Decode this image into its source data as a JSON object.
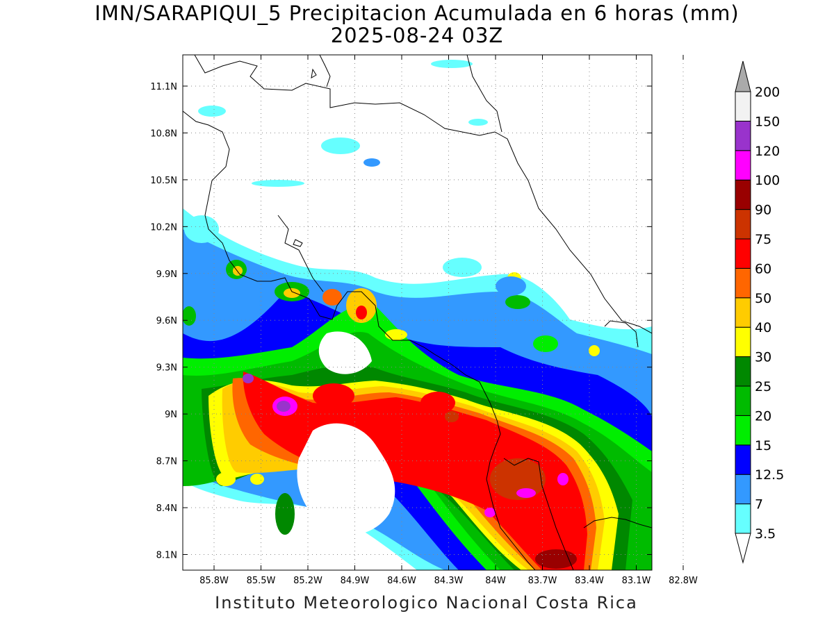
{
  "title": {
    "line1": "IMN/SARAPIQUI_5 Precipitacion Acumulada en 6 horas (mm)",
    "line2": "2025-08-24 03Z"
  },
  "footer": "Instituto Meteorologico Nacional Costa Rica",
  "map": {
    "lon_range": [
      -86.0,
      -83.0
    ],
    "lat_range": [
      8.0,
      11.3
    ],
    "lon_ticks": [
      "85.8W",
      "85.5W",
      "85.2W",
      "84.9W",
      "84.6W",
      "84.3W",
      "84W",
      "83.7W",
      "83.4W",
      "83.1W",
      "82.8W"
    ],
    "lat_ticks": [
      "8.1N",
      "8.4N",
      "8.7N",
      "9N",
      "9.3N",
      "9.6N",
      "9.9N",
      "10.2N",
      "10.5N",
      "10.8N",
      "11.1N"
    ],
    "grid": "dotted"
  },
  "colorbar": {
    "levels": [
      "3.5",
      "7",
      "12.5",
      "15",
      "20",
      "25",
      "30",
      "40",
      "50",
      "60",
      "75",
      "90",
      "100",
      "120",
      "150",
      "200"
    ],
    "colors": [
      "#66ffff",
      "#3399ff",
      "#0000ff",
      "#00ee00",
      "#00bb00",
      "#008800",
      "#ffff00",
      "#ffcc00",
      "#ff6600",
      "#ff0000",
      "#cc3300",
      "#990000",
      "#ff00ff",
      "#9933cc",
      "#f2f2f2",
      "#aaaaaa"
    ]
  }
}
